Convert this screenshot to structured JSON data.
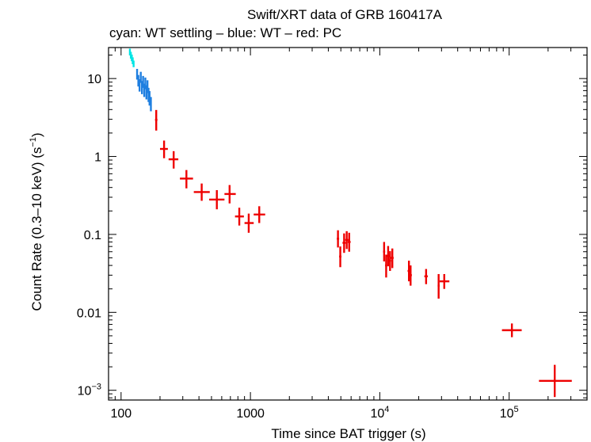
{
  "chart_data": {
    "type": "scatter",
    "title": "Swift/XRT data of GRB 160417A",
    "subtitle": "cyan: WT settling – blue: WT – red: PC",
    "xlabel": "Time since BAT trigger (s)",
    "ylabel": "Count Rate (0.3–10 keV) (s",
    "ylabel_sup": "−1",
    "ylabel_close": ")",
    "xscale": "log",
    "yscale": "log",
    "xlim": [
      80,
      400000
    ],
    "ylim": [
      0.00075,
      25
    ],
    "x_ticks": [
      {
        "value": 100,
        "base": "100",
        "exp": ""
      },
      {
        "value": 1000,
        "base": "1000",
        "exp": ""
      },
      {
        "value": 10000,
        "base": "10",
        "exp": "4"
      },
      {
        "value": 100000,
        "base": "10",
        "exp": "5"
      }
    ],
    "y_ticks": [
      {
        "value": 10,
        "base": "10",
        "exp": ""
      },
      {
        "value": 1,
        "base": "1",
        "exp": ""
      },
      {
        "value": 0.1,
        "base": "0.1",
        "exp": ""
      },
      {
        "value": 0.01,
        "base": "0.01",
        "exp": ""
      },
      {
        "value": 0.001,
        "base": "10",
        "exp": "−3"
      }
    ],
    "series": [
      {
        "color": "#00e5e5",
        "points": [
          {
            "x": 117,
            "y": 22,
            "xerr": [
              1,
              1
            ],
            "yerr": [
              2.2,
              2.2
            ]
          },
          {
            "x": 119,
            "y": 20,
            "xerr": [
              1,
              1
            ],
            "yerr": [
              2.0,
              2.0
            ]
          },
          {
            "x": 121,
            "y": 18.5,
            "xerr": [
              1,
              1
            ],
            "yerr": [
              1.8,
              1.8
            ]
          },
          {
            "x": 123,
            "y": 17,
            "xerr": [
              1,
              1
            ],
            "yerr": [
              1.7,
              1.7
            ]
          },
          {
            "x": 125,
            "y": 15.5,
            "xerr": [
              1,
              1
            ],
            "yerr": [
              1.5,
              1.5
            ]
          }
        ]
      },
      {
        "color": "#1f7fe0",
        "points": [
          {
            "x": 133,
            "y": 11.5,
            "xerr": [
              1.5,
              1.5
            ],
            "yerr": [
              1.8,
              1.8
            ]
          },
          {
            "x": 136,
            "y": 9.5,
            "xerr": [
              1.5,
              1.5
            ],
            "yerr": [
              1.6,
              1.6
            ]
          },
          {
            "x": 139,
            "y": 8.3,
            "xerr": [
              1.5,
              1.5
            ],
            "yerr": [
              1.5,
              1.5
            ]
          },
          {
            "x": 142,
            "y": 10.5,
            "xerr": [
              1.5,
              1.5
            ],
            "yerr": [
              1.7,
              1.7
            ]
          },
          {
            "x": 145,
            "y": 7.8,
            "xerr": [
              1.5,
              1.5
            ],
            "yerr": [
              1.5,
              1.5
            ]
          },
          {
            "x": 148,
            "y": 9.2,
            "xerr": [
              1.5,
              1.5
            ],
            "yerr": [
              1.6,
              1.6
            ]
          },
          {
            "x": 151,
            "y": 7.2,
            "xerr": [
              1.5,
              1.5
            ],
            "yerr": [
              1.4,
              1.4
            ]
          },
          {
            "x": 154,
            "y": 8.8,
            "xerr": [
              1.5,
              1.5
            ],
            "yerr": [
              1.5,
              1.5
            ]
          },
          {
            "x": 157,
            "y": 6.8,
            "xerr": [
              1.5,
              1.5
            ],
            "yerr": [
              1.4,
              1.4
            ]
          },
          {
            "x": 160,
            "y": 8.0,
            "xerr": [
              1.5,
              1.5
            ],
            "yerr": [
              1.5,
              1.5
            ]
          },
          {
            "x": 163,
            "y": 6.3,
            "xerr": [
              1.5,
              1.5
            ],
            "yerr": [
              1.3,
              1.3
            ]
          },
          {
            "x": 166,
            "y": 5.7,
            "xerr": [
              1.5,
              1.5
            ],
            "yerr": [
              1.2,
              1.2
            ]
          },
          {
            "x": 170,
            "y": 4.8,
            "xerr": [
              1.5,
              1.5
            ],
            "yerr": [
              1.0,
              1.0
            ]
          }
        ]
      },
      {
        "color": "#ee0000",
        "points": [
          {
            "x": 187,
            "y": 2.95,
            "xerr": [
              4,
              4
            ],
            "yerr": [
              0.8,
              1.0
            ]
          },
          {
            "x": 215,
            "y": 1.25,
            "xerr": [
              15,
              15
            ],
            "yerr": [
              0.3,
              0.35
            ]
          },
          {
            "x": 255,
            "y": 0.92,
            "xerr": [
              22,
              22
            ],
            "yerr": [
              0.22,
              0.25
            ]
          },
          {
            "x": 320,
            "y": 0.52,
            "xerr": [
              35,
              40
            ],
            "yerr": [
              0.13,
              0.15
            ]
          },
          {
            "x": 420,
            "y": 0.35,
            "xerr": [
              55,
              65
            ],
            "yerr": [
              0.08,
              0.1
            ]
          },
          {
            "x": 550,
            "y": 0.28,
            "xerr": [
              70,
              80
            ],
            "yerr": [
              0.07,
              0.09
            ]
          },
          {
            "x": 690,
            "y": 0.33,
            "xerr": [
              60,
              80
            ],
            "yerr": [
              0.08,
              0.1
            ]
          },
          {
            "x": 820,
            "y": 0.17,
            "xerr": [
              60,
              70
            ],
            "yerr": [
              0.04,
              0.05
            ]
          },
          {
            "x": 970,
            "y": 0.14,
            "xerr": [
              70,
              90
            ],
            "yerr": [
              0.035,
              0.045
            ]
          },
          {
            "x": 1170,
            "y": 0.18,
            "xerr": [
              110,
              130
            ],
            "yerr": [
              0.04,
              0.05
            ]
          },
          {
            "x": 4750,
            "y": 0.088,
            "xerr": [
              100,
              100
            ],
            "yerr": [
              0.02,
              0.025
            ]
          },
          {
            "x": 4950,
            "y": 0.052,
            "xerr": [
              100,
              100
            ],
            "yerr": [
              0.014,
              0.018
            ]
          },
          {
            "x": 5300,
            "y": 0.078,
            "xerr": [
              150,
              150
            ],
            "yerr": [
              0.02,
              0.025
            ]
          },
          {
            "x": 5550,
            "y": 0.085,
            "xerr": [
              150,
              150
            ],
            "yerr": [
              0.02,
              0.025
            ]
          },
          {
            "x": 5800,
            "y": 0.08,
            "xerr": [
              150,
              150
            ],
            "yerr": [
              0.02,
              0.025
            ]
          },
          {
            "x": 10800,
            "y": 0.06,
            "xerr": [
              200,
              200
            ],
            "yerr": [
              0.015,
              0.02
            ]
          },
          {
            "x": 11200,
            "y": 0.04,
            "xerr": [
              200,
              200
            ],
            "yerr": [
              0.012,
              0.015
            ]
          },
          {
            "x": 11600,
            "y": 0.053,
            "xerr": [
              250,
              250
            ],
            "yerr": [
              0.014,
              0.018
            ]
          },
          {
            "x": 12000,
            "y": 0.046,
            "xerr": [
              250,
              250
            ],
            "yerr": [
              0.012,
              0.015
            ]
          },
          {
            "x": 12500,
            "y": 0.05,
            "xerr": [
              300,
              300
            ],
            "yerr": [
              0.013,
              0.016
            ]
          },
          {
            "x": 16800,
            "y": 0.034,
            "xerr": [
              400,
              400
            ],
            "yerr": [
              0.009,
              0.012
            ]
          },
          {
            "x": 17300,
            "y": 0.03,
            "xerr": [
              400,
              400
            ],
            "yerr": [
              0.008,
              0.01
            ]
          },
          {
            "x": 22800,
            "y": 0.029,
            "xerr": [
              700,
              700
            ],
            "yerr": [
              0.006,
              0.007
            ]
          },
          {
            "x": 28500,
            "y": 0.022,
            "xerr": [
              500,
              500
            ],
            "yerr": [
              0.007,
              0.009
            ]
          },
          {
            "x": 31500,
            "y": 0.025,
            "xerr": [
              2500,
              3000
            ],
            "yerr": [
              0.005,
              0.006
            ]
          },
          {
            "x": 105000,
            "y": 0.0059,
            "xerr": [
              17000,
              20000
            ],
            "yerr": [
              0.0011,
              0.0013
            ]
          },
          {
            "x": 225000,
            "y": 0.00132,
            "xerr": [
              55000,
              80000
            ],
            "yerr": [
              0.0005,
              0.0008
            ]
          }
        ]
      }
    ]
  }
}
